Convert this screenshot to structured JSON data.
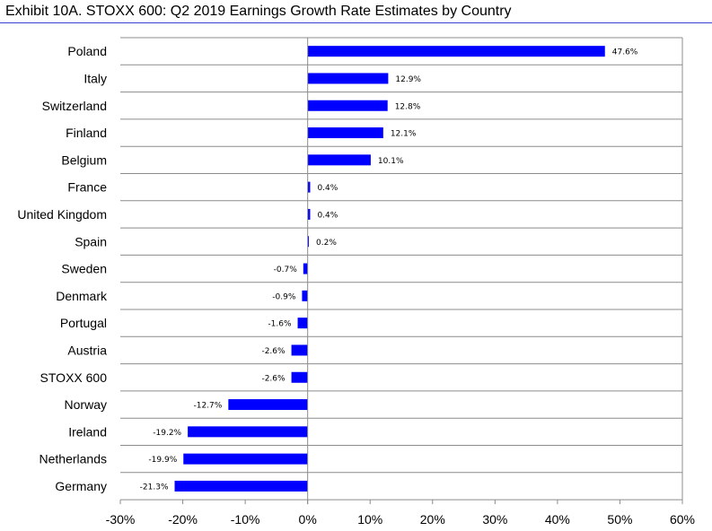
{
  "chart_data": {
    "type": "bar",
    "orientation": "horizontal",
    "title": "Exhibit 10A.  STOXX 600: Q2 2019 Earnings Growth Rate Estimates by Country",
    "categories": [
      "Poland",
      "Italy",
      "Switzerland",
      "Finland",
      "Belgium",
      "France",
      "United Kingdom",
      "Spain",
      "Sweden",
      "Denmark",
      "Portugal",
      "Austria",
      "STOXX 600",
      "Norway",
      "Ireland",
      "Netherlands",
      "Germany"
    ],
    "values": [
      47.6,
      12.9,
      12.8,
      12.1,
      10.1,
      0.4,
      0.4,
      0.2,
      -0.7,
      -0.9,
      -1.6,
      -2.6,
      -2.6,
      -12.7,
      -19.2,
      -19.9,
      -21.3
    ],
    "data_labels": [
      "47.6%",
      "12.9%",
      "12.8%",
      "12.1%",
      "10.1%",
      "0.4%",
      "0.4%",
      "0.2%",
      "-0.7%",
      "-0.9%",
      "-1.6%",
      "-2.6%",
      "-2.6%",
      "-12.7%",
      "-19.2%",
      "-19.9%",
      "-21.3%"
    ],
    "x_ticks": [
      -30,
      -20,
      -10,
      0,
      10,
      20,
      30,
      40,
      50,
      60
    ],
    "x_tick_labels": [
      "-30%",
      "-20%",
      "-10%",
      "0%",
      "10%",
      "20%",
      "30%",
      "40%",
      "50%",
      "60%"
    ],
    "xlim": [
      -30,
      60
    ],
    "xlabel": "",
    "ylabel": "",
    "grid": "horizontal",
    "bar_color": "#0000ff",
    "title_rule_color": "#3b3bd6"
  }
}
